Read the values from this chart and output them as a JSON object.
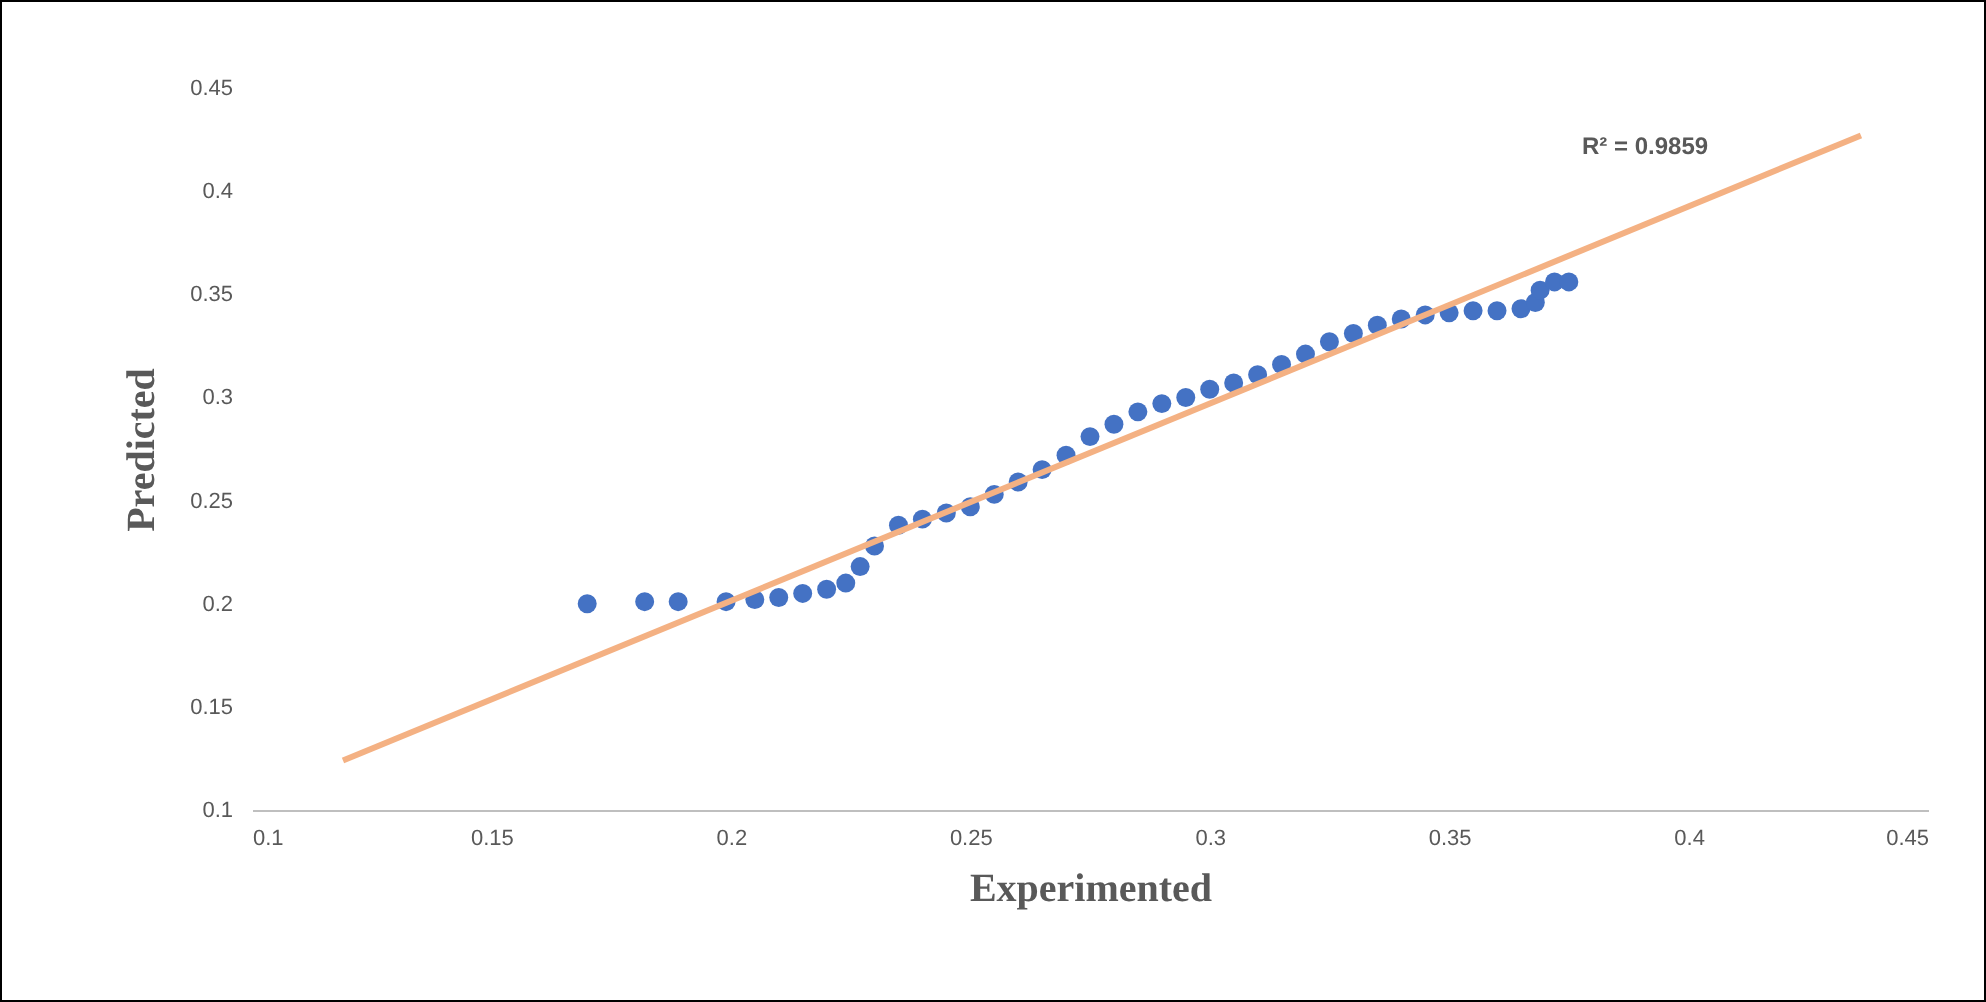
{
  "chart_data": {
    "type": "scatter",
    "xlabel": "Experimented",
    "ylabel": "Predicted",
    "xlim": [
      0.1,
      0.45
    ],
    "xticks": [
      0.1,
      0.15,
      0.2,
      0.25,
      0.3,
      0.35,
      0.4,
      0.45
    ],
    "ylim": [
      0.1,
      0.45
    ],
    "yticks": [
      0.1,
      0.15,
      0.2,
      0.25,
      0.3,
      0.35,
      0.4,
      0.45
    ],
    "grid": false,
    "annotations": [
      "R² = 0.9859"
    ],
    "series": [
      {
        "marker": "circle",
        "color": "#4472c4",
        "x": [
          0.17,
          0.182,
          0.189,
          0.199,
          0.205,
          0.21,
          0.215,
          0.22,
          0.224,
          0.227,
          0.23,
          0.235,
          0.24,
          0.245,
          0.25,
          0.255,
          0.26,
          0.265,
          0.27,
          0.275,
          0.28,
          0.285,
          0.29,
          0.295,
          0.3,
          0.305,
          0.31,
          0.315,
          0.32,
          0.325,
          0.33,
          0.335,
          0.34,
          0.345,
          0.35,
          0.355,
          0.36,
          0.365,
          0.368,
          0.369,
          0.372,
          0.375
        ],
        "values": [
          0.2,
          0.201,
          0.201,
          0.201,
          0.202,
          0.203,
          0.205,
          0.207,
          0.21,
          0.218,
          0.228,
          0.238,
          0.241,
          0.244,
          0.247,
          0.253,
          0.259,
          0.265,
          0.272,
          0.281,
          0.287,
          0.293,
          0.297,
          0.3,
          0.304,
          0.307,
          0.311,
          0.316,
          0.321,
          0.327,
          0.331,
          0.335,
          0.338,
          0.34,
          0.341,
          0.342,
          0.342,
          0.343,
          0.346,
          0.352,
          0.356,
          0.356
        ]
      },
      {
        "type": "line",
        "color": "#f4b183",
        "x": [
          0.119,
          0.436
        ],
        "values": [
          0.124,
          0.427
        ]
      }
    ]
  }
}
